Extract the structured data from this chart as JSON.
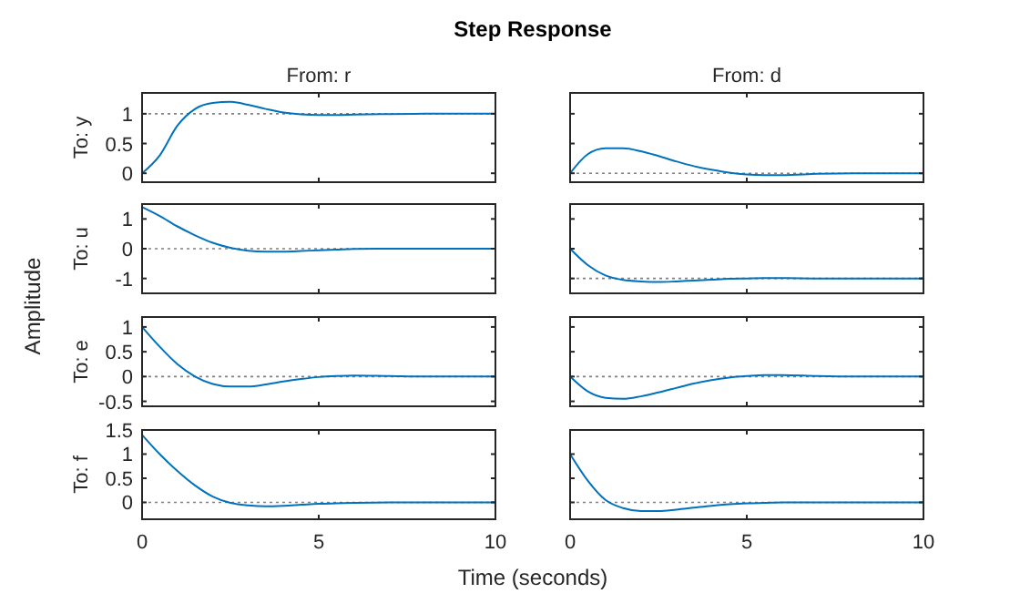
{
  "chart_data": [
    {
      "type": "line",
      "title": "Step Response",
      "subtitle": "From: r",
      "ylabel": "To: y",
      "annotations": [
        "Amplitude"
      ],
      "xlim": [
        0,
        10
      ],
      "xticks": [
        0,
        5,
        10
      ],
      "ylim": [
        -0.15,
        1.35
      ],
      "yticks": [
        0,
        0.5,
        1
      ],
      "tick_labels": "y",
      "ref_lines": [
        {
          "axis": "y",
          "value": 1,
          "color": "#808080",
          "line_style": "dotted"
        }
      ],
      "series": [
        {
          "color": "#0072bd",
          "x": [
            0,
            0.5,
            1,
            1.5,
            2,
            2.5,
            3,
            3.5,
            4,
            4.5,
            5,
            5.5,
            6,
            7,
            8,
            9,
            10
          ],
          "values": [
            0,
            0.3,
            0.8,
            1.08,
            1.18,
            1.2,
            1.15,
            1.08,
            1.02,
            0.99,
            0.98,
            0.98,
            0.985,
            0.995,
            1,
            1,
            1
          ]
        }
      ]
    },
    {
      "type": "line",
      "subtitle": "From: d",
      "xlim": [
        0,
        10
      ],
      "xticks": [
        0,
        5,
        10
      ],
      "ylim": [
        -0.15,
        1.35
      ],
      "yticks": [
        0,
        0.5,
        1
      ],
      "tick_labels": false,
      "ref_lines": [
        {
          "axis": "y",
          "value": 0,
          "color": "#808080",
          "line_style": "dotted"
        }
      ],
      "series": [
        {
          "color": "#0072bd",
          "x": [
            0,
            0.5,
            1,
            1.5,
            2,
            2.5,
            3,
            3.5,
            4,
            4.5,
            5,
            5.5,
            6,
            7,
            8,
            9,
            10
          ],
          "values": [
            0,
            0.32,
            0.42,
            0.42,
            0.37,
            0.29,
            0.2,
            0.12,
            0.06,
            0.01,
            -0.02,
            -0.03,
            -0.03,
            -0.01,
            0,
            0,
            0
          ]
        }
      ]
    },
    {
      "type": "line",
      "ylabel": "To: u",
      "xlim": [
        0,
        10
      ],
      "xticks": [
        0,
        5,
        10
      ],
      "ylim": [
        -1.5,
        1.5
      ],
      "yticks": [
        -1,
        0,
        1
      ],
      "tick_labels": "y",
      "ref_lines": [
        {
          "axis": "y",
          "value": 0,
          "color": "#808080",
          "line_style": "dotted"
        }
      ],
      "series": [
        {
          "color": "#0072bd",
          "x": [
            0,
            0.5,
            1,
            1.5,
            2,
            2.5,
            3,
            3.5,
            4,
            4.5,
            5,
            5.5,
            6,
            7,
            8,
            9,
            10
          ],
          "values": [
            1.4,
            1.1,
            0.75,
            0.45,
            0.2,
            0.03,
            -0.07,
            -0.1,
            -0.1,
            -0.08,
            -0.05,
            -0.03,
            -0.01,
            0,
            0,
            0,
            0
          ]
        }
      ]
    },
    {
      "type": "line",
      "xlim": [
        0,
        10
      ],
      "xticks": [
        0,
        5,
        10
      ],
      "ylim": [
        -1.5,
        1.5
      ],
      "yticks": [
        -1,
        0,
        1
      ],
      "tick_labels": false,
      "ref_lines": [
        {
          "axis": "y",
          "value": -1,
          "color": "#808080",
          "line_style": "dotted"
        }
      ],
      "series": [
        {
          "color": "#0072bd",
          "x": [
            0,
            0.5,
            1,
            1.5,
            2,
            2.5,
            3,
            3.5,
            4,
            4.5,
            5,
            5.5,
            6,
            7,
            8,
            9,
            10
          ],
          "values": [
            0,
            -0.55,
            -0.9,
            -1.05,
            -1.1,
            -1.12,
            -1.1,
            -1.07,
            -1.04,
            -1.01,
            -1,
            -0.99,
            -0.99,
            -1,
            -1,
            -1,
            -1
          ]
        }
      ]
    },
    {
      "type": "line",
      "ylabel": "To: e",
      "xlim": [
        0,
        10
      ],
      "xticks": [
        0,
        5,
        10
      ],
      "ylim": [
        -0.6,
        1.2
      ],
      "yticks": [
        -0.5,
        0,
        0.5,
        1
      ],
      "tick_labels": "y",
      "ref_lines": [
        {
          "axis": "y",
          "value": 0,
          "color": "#808080",
          "line_style": "dotted"
        }
      ],
      "series": [
        {
          "color": "#0072bd",
          "x": [
            0,
            0.5,
            1,
            1.5,
            2,
            2.5,
            3,
            3.5,
            4,
            4.5,
            5,
            5.5,
            6,
            7,
            8,
            9,
            10
          ],
          "values": [
            1,
            0.6,
            0.25,
            0,
            -0.15,
            -0.2,
            -0.2,
            -0.16,
            -0.1,
            -0.05,
            -0.01,
            0.01,
            0.02,
            0.01,
            0,
            0,
            0
          ]
        }
      ]
    },
    {
      "type": "line",
      "xlim": [
        0,
        10
      ],
      "xticks": [
        0,
        5,
        10
      ],
      "ylim": [
        -0.6,
        1.2
      ],
      "yticks": [
        -0.5,
        0,
        0.5,
        1
      ],
      "tick_labels": false,
      "ref_lines": [
        {
          "axis": "y",
          "value": 0,
          "color": "#808080",
          "line_style": "dotted"
        }
      ],
      "series": [
        {
          "color": "#0072bd",
          "x": [
            0,
            0.5,
            1,
            1.5,
            2,
            2.5,
            3,
            3.5,
            4,
            4.5,
            5,
            5.5,
            6,
            7,
            8,
            9,
            10
          ],
          "values": [
            0,
            -0.3,
            -0.43,
            -0.45,
            -0.4,
            -0.32,
            -0.23,
            -0.14,
            -0.07,
            -0.02,
            0.01,
            0.03,
            0.03,
            0.01,
            0,
            0,
            0
          ]
        }
      ]
    },
    {
      "type": "line",
      "ylabel": "To: f",
      "xlabel": "Time (seconds)",
      "xlim": [
        0,
        10
      ],
      "xticks": [
        0,
        5,
        10
      ],
      "ylim": [
        -0.35,
        1.5
      ],
      "yticks": [
        0,
        0.5,
        1,
        1.5
      ],
      "ref_lines": [
        {
          "axis": "y",
          "value": 0,
          "color": "#808080",
          "line_style": "dotted"
        }
      ],
      "series": [
        {
          "color": "#0072bd",
          "x": [
            0,
            0.5,
            1,
            1.5,
            2,
            2.5,
            3,
            3.5,
            4,
            4.5,
            5,
            5.5,
            6,
            7,
            8,
            9,
            10
          ],
          "values": [
            1.4,
            1.0,
            0.65,
            0.35,
            0.12,
            -0.01,
            -0.06,
            -0.08,
            -0.07,
            -0.05,
            -0.03,
            -0.02,
            -0.01,
            0,
            0,
            0,
            0
          ]
        }
      ]
    },
    {
      "type": "line",
      "xlim": [
        0,
        10
      ],
      "xticks": [
        0,
        5,
        10
      ],
      "ylim": [
        -0.35,
        1.5
      ],
      "yticks": [
        0,
        0.5,
        1,
        1.5
      ],
      "tick_labels": "x",
      "ref_lines": [
        {
          "axis": "y",
          "value": 0,
          "color": "#808080",
          "line_style": "dotted"
        }
      ],
      "series": [
        {
          "color": "#0072bd",
          "x": [
            0,
            0.5,
            1,
            1.5,
            2,
            2.5,
            3,
            3.5,
            4,
            4.5,
            5,
            5.5,
            6,
            7,
            8,
            9,
            10
          ],
          "values": [
            1,
            0.45,
            0.05,
            -0.12,
            -0.18,
            -0.18,
            -0.15,
            -0.11,
            -0.07,
            -0.04,
            -0.02,
            -0.01,
            0,
            0,
            0,
            0,
            0
          ]
        }
      ]
    }
  ]
}
